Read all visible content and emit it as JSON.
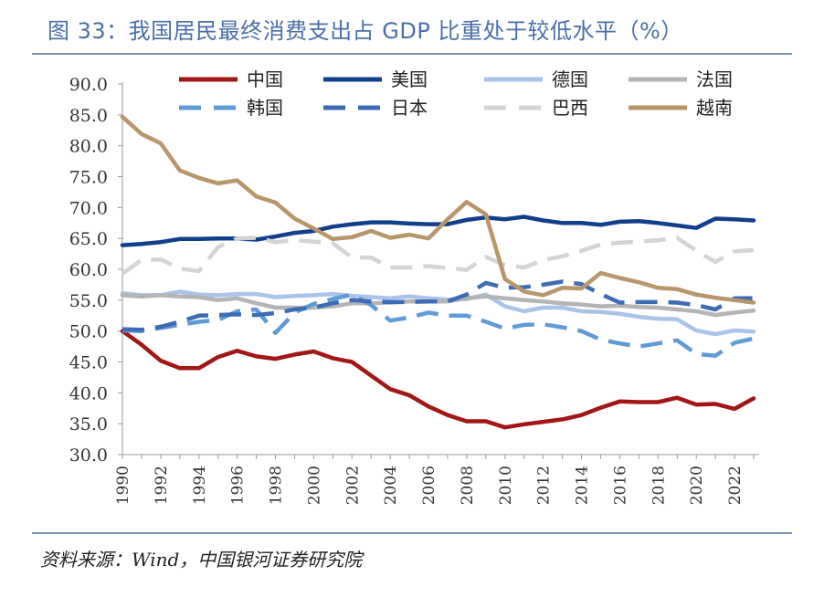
{
  "title": "图 33：我国居民最终消费支出占 GDP 比重处于较低水平（%）",
  "source": "资料来源：Wind，中国银河证券研究院",
  "chart_data": {
    "type": "line",
    "title": "",
    "xlabel": "",
    "ylabel": "",
    "ylim": [
      30,
      90
    ],
    "yticks": [
      "90.0",
      "85.0",
      "80.0",
      "75.0",
      "70.0",
      "65.0",
      "60.0",
      "55.0",
      "50.0",
      "45.0",
      "40.0",
      "35.0",
      "30.0"
    ],
    "xticks": [
      "1990",
      "1992",
      "1994",
      "1996",
      "1998",
      "2000",
      "2002",
      "2004",
      "2006",
      "2008",
      "2010",
      "2012",
      "2014",
      "2016",
      "2018",
      "2020",
      "2022"
    ],
    "x": [
      1990,
      1991,
      1992,
      1993,
      1994,
      1995,
      1996,
      1997,
      1998,
      1999,
      2000,
      2001,
      2002,
      2003,
      2004,
      2005,
      2006,
      2007,
      2008,
      2009,
      2010,
      2011,
      2012,
      2013,
      2014,
      2015,
      2016,
      2017,
      2018,
      2019,
      2020,
      2021,
      2022,
      2023
    ],
    "legend_position": "top",
    "series": [
      {
        "name": "中国",
        "color": "#a31616",
        "dash": "solid",
        "values": [
          50.0,
          47.8,
          45.2,
          44.0,
          44.0,
          45.8,
          46.8,
          45.9,
          45.5,
          46.2,
          46.7,
          45.6,
          45.0,
          42.8,
          40.6,
          39.6,
          37.8,
          36.4,
          35.4,
          35.4,
          34.4,
          34.9,
          35.3,
          35.7,
          36.4,
          37.6,
          38.6,
          38.5,
          38.5,
          39.2,
          38.1,
          38.2,
          37.4,
          39.1
        ]
      },
      {
        "name": "美国",
        "color": "#103f8c",
        "dash": "solid",
        "values": [
          63.9,
          64.1,
          64.4,
          64.9,
          64.9,
          65.0,
          65.0,
          64.8,
          65.3,
          65.9,
          66.2,
          66.9,
          67.3,
          67.6,
          67.6,
          67.4,
          67.3,
          67.3,
          68.0,
          68.4,
          68.1,
          68.5,
          67.9,
          67.5,
          67.5,
          67.2,
          67.7,
          67.8,
          67.5,
          67.1,
          66.7,
          68.2,
          68.1,
          67.9
        ]
      },
      {
        "name": "德国",
        "color": "#a9c3e9",
        "dash": "solid",
        "values": [
          56.1,
          55.8,
          55.8,
          56.4,
          55.9,
          55.8,
          56.0,
          56.0,
          55.5,
          55.7,
          55.8,
          56.0,
          55.7,
          55.5,
          55.3,
          55.6,
          55.3,
          55.1,
          55.2,
          55.9,
          54.0,
          53.2,
          53.8,
          53.8,
          53.2,
          53.1,
          52.8,
          52.3,
          52.0,
          51.9,
          50.1,
          49.5,
          50.1,
          49.9
        ]
      },
      {
        "name": "法国",
        "color": "#b4b4b4",
        "dash": "solid",
        "values": [
          55.8,
          55.6,
          55.8,
          55.6,
          55.5,
          55.0,
          55.3,
          54.5,
          53.8,
          53.8,
          53.8,
          54.0,
          54.5,
          54.5,
          54.6,
          54.8,
          54.8,
          54.8,
          55.3,
          55.6,
          55.3,
          55.0,
          54.8,
          54.5,
          54.3,
          54.0,
          54.1,
          53.9,
          53.8,
          53.5,
          53.2,
          52.6,
          53.0,
          53.3
        ]
      },
      {
        "name": "韩国",
        "color": "#5f9bd6",
        "dash": "dashed",
        "values": [
          50.1,
          50.0,
          50.5,
          51.0,
          51.5,
          51.8,
          53.2,
          53.5,
          49.7,
          53.0,
          54.4,
          55.2,
          55.9,
          54.2,
          51.7,
          52.2,
          53.0,
          52.5,
          52.5,
          51.5,
          50.4,
          51.0,
          51.1,
          50.6,
          50.0,
          48.6,
          48.0,
          47.5,
          48.0,
          48.5,
          46.3,
          46.0,
          48.1,
          48.8
        ]
      },
      {
        "name": "日本",
        "color": "#3c6cb4",
        "dash": "dashed",
        "values": [
          50.3,
          50.2,
          50.7,
          51.5,
          52.5,
          52.6,
          52.7,
          52.6,
          52.9,
          53.5,
          53.8,
          54.5,
          55.0,
          54.8,
          54.7,
          54.7,
          54.8,
          54.8,
          55.9,
          57.8,
          57.0,
          57.1,
          57.5,
          58.0,
          57.6,
          56.0,
          54.6,
          54.7,
          54.7,
          54.6,
          54.2,
          53.5,
          55.3,
          55.3
        ]
      },
      {
        "name": "巴西",
        "color": "#d4d4d4",
        "dash": "dashed",
        "values": [
          59.3,
          61.5,
          61.6,
          60.1,
          59.7,
          63.6,
          65.0,
          65.1,
          64.4,
          64.7,
          64.5,
          64.2,
          61.9,
          61.9,
          60.3,
          60.3,
          60.5,
          60.2,
          59.9,
          62.0,
          60.7,
          60.3,
          61.5,
          62.1,
          63.0,
          64.0,
          64.3,
          64.5,
          64.7,
          65.1,
          63.0,
          61.2,
          62.9,
          63.1
        ]
      },
      {
        "name": "越南",
        "color": "#b8966a",
        "dash": "solid",
        "values": [
          84.7,
          81.9,
          80.4,
          76.0,
          74.8,
          73.9,
          74.4,
          71.8,
          70.8,
          68.2,
          66.6,
          64.9,
          65.2,
          66.2,
          65.1,
          65.6,
          65.0,
          68.1,
          70.9,
          68.9,
          58.4,
          56.4,
          55.8,
          57.0,
          56.9,
          59.4,
          58.6,
          57.9,
          57.0,
          56.8,
          55.9,
          55.4,
          55.0,
          54.6
        ]
      }
    ]
  }
}
